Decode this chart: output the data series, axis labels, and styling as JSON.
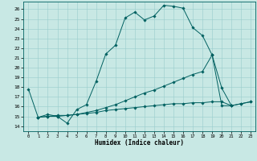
{
  "xlabel": "Humidex (Indice chaleur)",
  "xlim": [
    -0.5,
    23.5
  ],
  "ylim": [
    13.5,
    26.8
  ],
  "yticks": [
    14,
    15,
    16,
    17,
    18,
    19,
    20,
    21,
    22,
    23,
    24,
    25,
    26
  ],
  "xticks": [
    0,
    1,
    2,
    3,
    4,
    5,
    6,
    7,
    8,
    9,
    10,
    11,
    12,
    13,
    14,
    15,
    16,
    17,
    18,
    19,
    20,
    21,
    22,
    23
  ],
  "bg_color": "#c8e8e4",
  "line_color": "#006060",
  "grid_color": "#99cccc",
  "lines": [
    {
      "x": [
        0,
        1,
        2,
        3,
        4,
        5,
        6,
        7,
        8,
        9,
        10,
        11,
        12,
        13,
        14,
        15,
        16,
        17,
        18,
        19
      ],
      "y": [
        17.8,
        14.9,
        15.2,
        15.0,
        14.3,
        15.7,
        16.2,
        18.6,
        21.4,
        22.3,
        25.1,
        25.7,
        24.9,
        25.3,
        26.4,
        26.3,
        26.1,
        24.1,
        23.3,
        21.3
      ]
    },
    {
      "x": [
        19,
        20,
        21,
        22,
        23
      ],
      "y": [
        21.3,
        17.9,
        16.1,
        16.3,
        16.5
      ]
    },
    {
      "x": [
        1,
        2,
        3,
        4,
        5,
        6,
        7,
        8,
        9,
        10,
        11,
        12,
        13,
        14,
        15,
        16,
        17,
        18,
        19,
        20,
        21
      ],
      "y": [
        14.9,
        15.0,
        15.1,
        15.1,
        15.2,
        15.4,
        15.6,
        15.9,
        16.2,
        16.6,
        17.0,
        17.4,
        17.7,
        18.1,
        18.5,
        18.9,
        19.3,
        19.6,
        21.3,
        16.1,
        16.1
      ]
    },
    {
      "x": [
        1,
        2,
        3,
        4,
        5,
        6,
        7,
        8,
        9,
        10,
        11,
        12,
        13,
        14,
        15,
        16,
        17,
        18,
        19,
        20,
        21,
        22,
        23
      ],
      "y": [
        14.9,
        15.0,
        15.0,
        15.1,
        15.2,
        15.3,
        15.4,
        15.6,
        15.7,
        15.8,
        15.9,
        16.0,
        16.1,
        16.2,
        16.3,
        16.3,
        16.4,
        16.4,
        16.5,
        16.5,
        16.1,
        16.3,
        16.5
      ]
    }
  ]
}
